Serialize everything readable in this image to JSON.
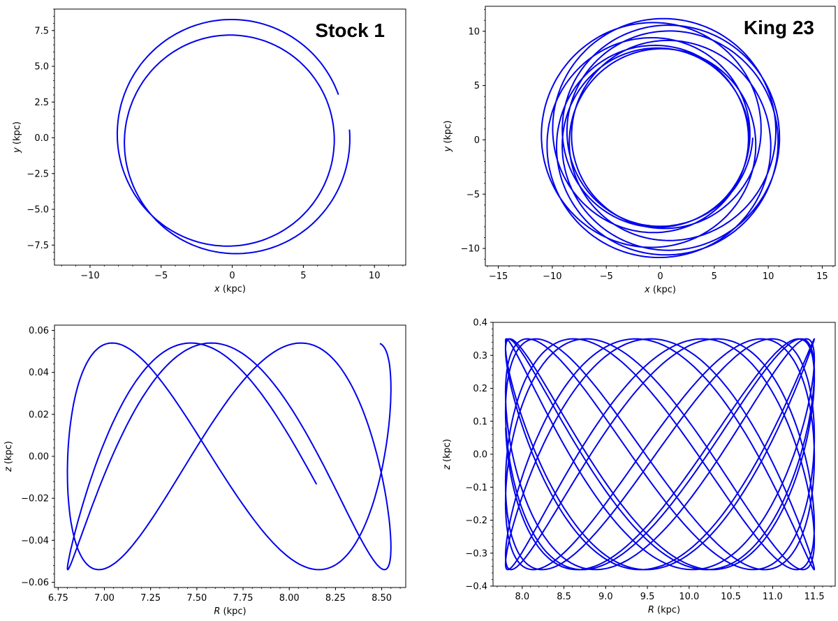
{
  "chart_data": [
    {
      "type": "line",
      "title": "Stock 1",
      "xlabel": "x",
      "xunit": " (kpc)",
      "ylabel": "y",
      "yunit": " (kpc)",
      "xlim": [
        -12.5,
        12.2
      ],
      "ylim": [
        -8.9,
        9.0
      ],
      "xticks": [
        -10,
        -5,
        0,
        5,
        10
      ],
      "yticks": [
        -7.5,
        -5.0,
        -2.5,
        0.0,
        2.5,
        5.0,
        7.5
      ],
      "grid": false,
      "color": "#0000ee",
      "series": [
        {
          "orbit": {
            "kind": "polar",
            "a": 7.7,
            "e": 0.075,
            "omega0": 3.0,
            "omegaRate": 0.4,
            "theta0": 0.07,
            "turns": 1.95,
            "dir": -1,
            "cx": 0.0,
            "cy": 0.0
          }
        }
      ]
    },
    {
      "type": "line",
      "title": "King 23",
      "xlabel": "x",
      "xunit": " (kpc)",
      "ylabel": "y",
      "yunit": " (kpc)",
      "xlim": [
        -16.2,
        16.2
      ],
      "ylim": [
        -11.6,
        12.3
      ],
      "xticks": [
        -15,
        -10,
        -5,
        0,
        5,
        10,
        15
      ],
      "yticks": [
        -10,
        -5,
        0,
        5,
        10
      ],
      "grid": false,
      "color": "#0000ee",
      "series": [
        {
          "orbit": {
            "kind": "polar",
            "a": 9.6,
            "e": 0.15,
            "omega0": 0.5,
            "omegaRate": 0.42,
            "theta0": 0.0,
            "turns": 9.0,
            "dir": 1,
            "cx": 0.0,
            "cy": 0.2
          }
        }
      ]
    },
    {
      "type": "line",
      "title": "",
      "xlabel": "R",
      "xunit": " (kpc)",
      "ylabel": "z",
      "yunit": " (kpc)",
      "xlim": [
        6.73,
        8.63
      ],
      "ylim": [
        -0.0625,
        0.0625
      ],
      "xticks": [
        6.75,
        7.0,
        7.25,
        7.5,
        7.75,
        8.0,
        8.25,
        8.5
      ],
      "yticks": [
        -0.06,
        -0.04,
        -0.02,
        0.0,
        0.02,
        0.04,
        0.06
      ],
      "tickDecimals": 2,
      "grid": false,
      "color": "#0000ee",
      "series": [
        {
          "orbit": {
            "kind": "meridional",
            "rMin": 6.8,
            "rMax": 8.55,
            "zAmp": 0.054,
            "periods": 1.9,
            "freqRatio": 2.25,
            "phaseR": 1.0,
            "phaseZ": -0.25
          }
        }
      ]
    },
    {
      "type": "line",
      "title": "",
      "xlabel": "R",
      "xunit": " (kpc)",
      "ylabel": "z",
      "yunit": " (kpc)",
      "xlim": [
        7.65,
        11.75
      ],
      "ylim": [
        -0.4,
        0.4
      ],
      "xticks": [
        8.0,
        8.5,
        9.0,
        9.5,
        10.0,
        10.5,
        11.0,
        11.5
      ],
      "yticks": [
        -0.4,
        -0.3,
        -0.2,
        -0.1,
        0.0,
        0.1,
        0.2,
        0.3,
        0.4
      ],
      "tickDecimals": 1,
      "grid": false,
      "color": "#0000ee",
      "series": [
        {
          "orbit": {
            "kind": "meridional",
            "rMin": 7.8,
            "rMax": 11.5,
            "zAmp": 0.35,
            "periods": 9.0,
            "freqRatio": 1.87,
            "phaseR": 3.1,
            "phaseZ": 1.3
          }
        }
      ]
    }
  ]
}
